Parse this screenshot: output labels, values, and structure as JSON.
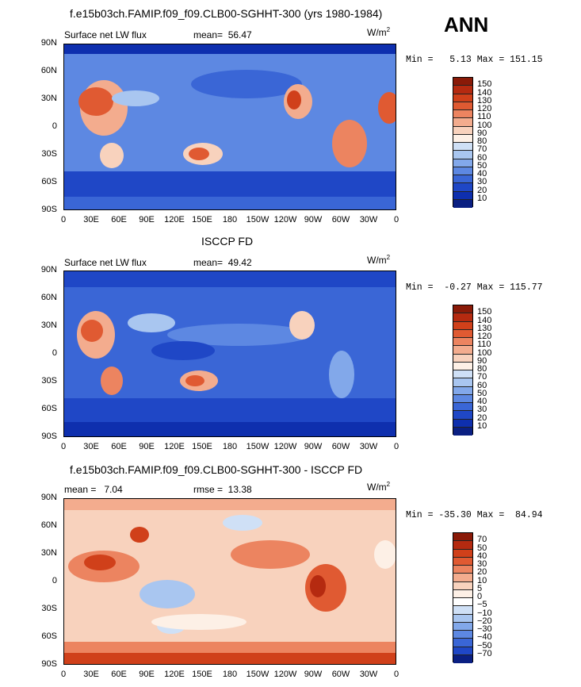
{
  "season": "ANN",
  "panels": [
    {
      "title": "f.e15b03ch.FAMIP.f09_f09.CLB00-SGHHT-300 (yrs 1980-1984)",
      "left_label": "Surface net LW flux",
      "mean_label": "mean=  56.47",
      "units_base": "W/m",
      "units_exp": "2",
      "minmax": "Min =   5.13 Max = 151.15",
      "levels": [
        "150",
        "140",
        "130",
        "120",
        "110",
        "100",
        "90",
        "80",
        "70",
        "60",
        "50",
        "40",
        "30",
        "20",
        "10"
      ],
      "colors": [
        "#8a1a08",
        "#b52a10",
        "#d0401a",
        "#e05a32",
        "#ec8460",
        "#f3ac8e",
        "#f8d2bd",
        "#fdf0e6",
        "#cfe0f6",
        "#a9c6f0",
        "#82a8ea",
        "#5d88e2",
        "#3a66d6",
        "#1f47c6",
        "#0e2fae",
        "#0a1f82"
      ]
    },
    {
      "title": "ISCCP FD",
      "left_label": "Surface net LW flux",
      "mean_label": "mean=  49.42",
      "units_base": "W/m",
      "units_exp": "2",
      "minmax": "Min =  -0.27 Max = 115.77",
      "levels": [
        "150",
        "140",
        "130",
        "120",
        "110",
        "100",
        "90",
        "80",
        "70",
        "60",
        "50",
        "40",
        "30",
        "20",
        "10"
      ],
      "colors": [
        "#8a1a08",
        "#b52a10",
        "#d0401a",
        "#e05a32",
        "#ec8460",
        "#f3ac8e",
        "#f8d2bd",
        "#fdf0e6",
        "#cfe0f6",
        "#a9c6f0",
        "#82a8ea",
        "#5d88e2",
        "#3a66d6",
        "#1f47c6",
        "#0e2fae",
        "#0a1f82"
      ]
    },
    {
      "title": "f.e15b03ch.FAMIP.f09_f09.CLB00-SGHHT-300 - ISCCP FD",
      "left_label": "mean =   7.04",
      "mean_label": "rmse =  13.38",
      "units_base": "W/m",
      "units_exp": "2",
      "minmax": "Min = -35.30 Max =  84.94",
      "levels": [
        "70",
        "50",
        "40",
        "30",
        "20",
        "10",
        "5",
        "0",
        "−5",
        "−10",
        "−20",
        "−30",
        "−40",
        "−50",
        "−70"
      ],
      "colors": [
        "#8a1a08",
        "#b52a10",
        "#d0401a",
        "#e05a32",
        "#ec8460",
        "#f3ac8e",
        "#f8d2bd",
        "#fdf0e6",
        "#ffffff",
        "#cfe0f6",
        "#a9c6f0",
        "#82a8ea",
        "#5d88e2",
        "#3a66d6",
        "#1f47c6",
        "#0a1f82"
      ]
    }
  ],
  "axes": {
    "lat_ticks": [
      "90N",
      "60N",
      "30N",
      "0",
      "30S",
      "60S",
      "90S"
    ],
    "lon_ticks": [
      "0",
      "30E",
      "60E",
      "90E",
      "120E",
      "150E",
      "180",
      "150W",
      "120W",
      "90W",
      "60W",
      "30W",
      "0"
    ]
  }
}
